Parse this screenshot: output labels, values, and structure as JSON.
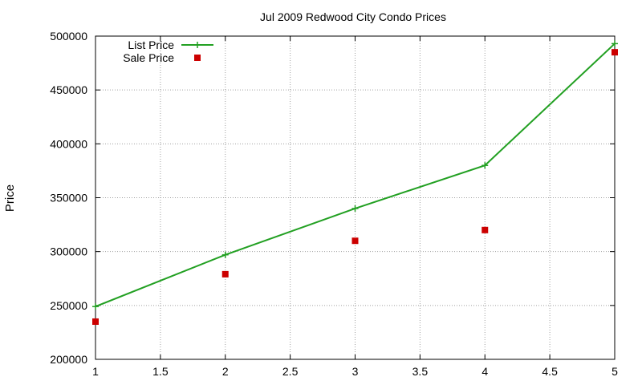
{
  "chart_data": {
    "type": "line",
    "title": "Jul 2009 Redwood City Condo Prices",
    "xlabel": "",
    "ylabel": "Price",
    "xlim": [
      1,
      5
    ],
    "ylim": [
      200000,
      500000
    ],
    "x_ticks": [
      1,
      1.5,
      2,
      2.5,
      3,
      3.5,
      4,
      4.5,
      5
    ],
    "x_tick_labels": [
      "1",
      "1.5",
      "2",
      "2.5",
      "3",
      "3.5",
      "4",
      "4.5",
      "5"
    ],
    "y_ticks": [
      200000,
      250000,
      300000,
      350000,
      400000,
      450000,
      500000
    ],
    "y_tick_labels": [
      "200000",
      "250000",
      "300000",
      "350000",
      "400000",
      "450000",
      "500000"
    ],
    "grid": true,
    "legend_position": "top-left",
    "series": [
      {
        "name": "List Price",
        "style": "line-with-plus-markers",
        "color": "#22a022",
        "x": [
          1,
          2,
          3,
          4,
          5
        ],
        "values": [
          249000,
          297000,
          340000,
          380000,
          493000
        ]
      },
      {
        "name": "Sale Price",
        "style": "square-markers",
        "color": "#cc0000",
        "x": [
          1,
          2,
          3,
          4,
          5
        ],
        "values": [
          235000,
          279000,
          310000,
          320000,
          485000
        ]
      }
    ]
  }
}
